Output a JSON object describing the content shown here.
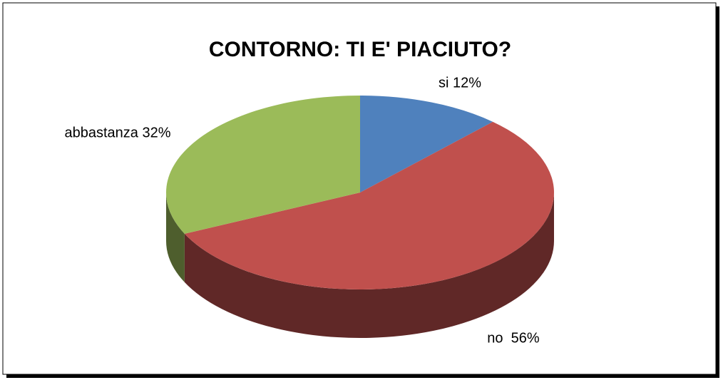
{
  "chart_data": {
    "type": "pie3d",
    "title": "CONTORNO: TI E' PIACIUTO?",
    "values": [
      12,
      56,
      32
    ],
    "value_labels": [
      "si 12%",
      "no  56%",
      "abbastanza 32%"
    ],
    "colors": [
      "#4f81bd",
      "#c0504d",
      "#9bbb59"
    ]
  }
}
